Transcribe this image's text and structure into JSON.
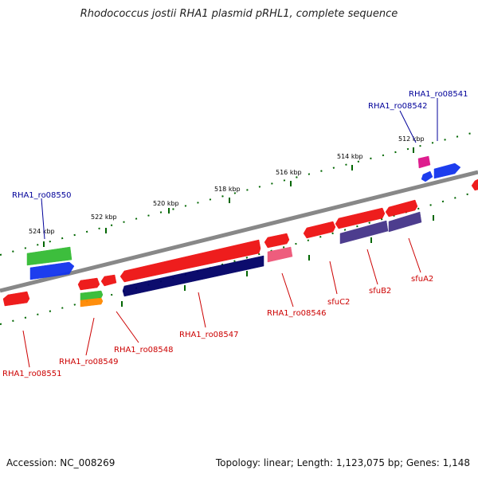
{
  "title": "Rhodococcus jostii RHA1 plasmid pRHL1, complete sequence",
  "footer": {
    "accession": "Accession: NC_008269",
    "summary": "Topology: linear; Length: 1,123,075 bp; Genes: 1,148"
  },
  "colors": {
    "red": "#ee1111",
    "green": "#33bb33",
    "blue": "#1133ee",
    "navy": "#000066",
    "slate": "#443388",
    "pink": "#ee5577",
    "magenta": "#dd1188",
    "orange": "#ff8800",
    "backbone": "#888888",
    "tick": "#006600",
    "label_red": "#cc0000",
    "label_blue": "#000099"
  },
  "scale_labels": [
    "524 kbp",
    "522 kbp",
    "520 kbp",
    "518 kbp",
    "516 kbp",
    "514 kbp",
    "512 kbp"
  ],
  "gene_labels": [
    {
      "text": "RHA1_ro08541",
      "color": "label_blue"
    },
    {
      "text": "RHA1_ro08542",
      "color": "label_blue"
    },
    {
      "text": "RHA1_ro08550",
      "color": "label_blue"
    },
    {
      "text": "RHA1_ro08551",
      "color": "label_red"
    },
    {
      "text": "RHA1_ro08549",
      "color": "label_red"
    },
    {
      "text": "RHA1_ro08548",
      "color": "label_red"
    },
    {
      "text": "RHA1_ro08547",
      "color": "label_red"
    },
    {
      "text": "RHA1_ro08546",
      "color": "label_red"
    },
    {
      "text": "sfuC2",
      "color": "label_red"
    },
    {
      "text": "sfuB2",
      "color": "label_red"
    },
    {
      "text": "sfuA2",
      "color": "label_red"
    }
  ]
}
